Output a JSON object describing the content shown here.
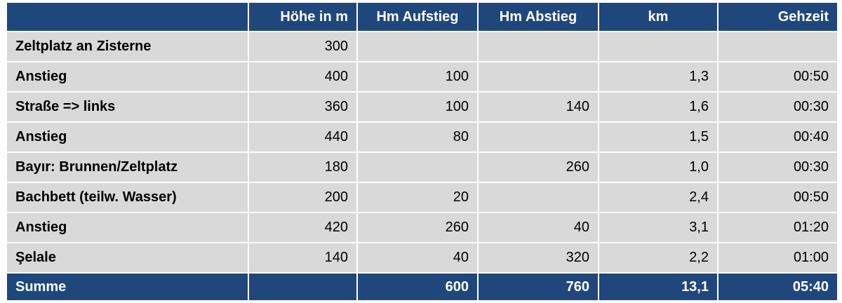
{
  "header": {
    "col0": "",
    "hoehe": "Höhe in m",
    "aufstieg": "Hm Aufstieg",
    "abstieg": "Hm Abstieg",
    "km": "km",
    "gehzeit": "Gehzeit"
  },
  "rows": [
    {
      "name": "Zeltplatz an Zisterne",
      "hoehe": "300",
      "aufstieg": "",
      "abstieg": "",
      "km": "",
      "gehzeit": ""
    },
    {
      "name": "Anstieg",
      "hoehe": "400",
      "aufstieg": "100",
      "abstieg": "",
      "km": "1,3",
      "gehzeit": "00:50"
    },
    {
      "name": "Straße => links",
      "hoehe": "360",
      "aufstieg": "100",
      "abstieg": "140",
      "km": "1,6",
      "gehzeit": "00:30"
    },
    {
      "name": "Anstieg",
      "hoehe": "440",
      "aufstieg": "80",
      "abstieg": "",
      "km": "1,5",
      "gehzeit": "00:40"
    },
    {
      "name": "Bayır: Brunnen/Zeltplatz",
      "hoehe": "180",
      "aufstieg": "",
      "abstieg": "260",
      "km": "1,0",
      "gehzeit": "00:30"
    },
    {
      "name": "Bachbett (teilw. Wasser)",
      "hoehe": "200",
      "aufstieg": "20",
      "abstieg": "",
      "km": "2,4",
      "gehzeit": "00:50"
    },
    {
      "name": "Anstieg",
      "hoehe": "420",
      "aufstieg": "260",
      "abstieg": "40",
      "km": "3,1",
      "gehzeit": "01:20"
    },
    {
      "name": "Şelale",
      "hoehe": "140",
      "aufstieg": "40",
      "abstieg": "320",
      "km": "2,2",
      "gehzeit": "01:00"
    }
  ],
  "footer": {
    "label": "Summe",
    "hoehe": "",
    "aufstieg": "600",
    "abstieg": "760",
    "km": "13,1",
    "gehzeit": "05:40"
  },
  "colors": {
    "header_bg": "#1f477b",
    "row_bg": "#d9d9d9",
    "header_text": "#ffffff"
  }
}
